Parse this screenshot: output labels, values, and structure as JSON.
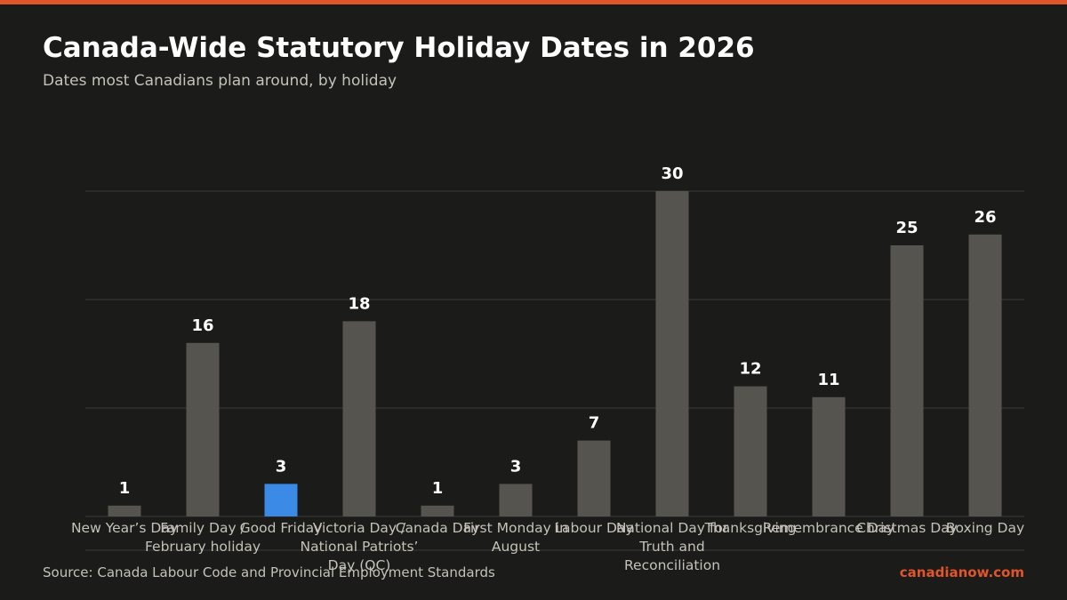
{
  "header": {
    "title": "Canada-Wide Statutory Holiday Dates in 2026",
    "subtitle": "Dates most Canadians plan around, by holiday"
  },
  "footer": {
    "source": "Source: Canada Labour Code and Provincial Employment Standards",
    "brand": "canadianow.com"
  },
  "colors": {
    "accent": "#e0552a",
    "bar": "#55544e",
    "highlight": "#3a8ae6",
    "grid": "#3a3936",
    "value_label": "#ffffff",
    "tick_label": "#c4c2b8"
  },
  "chart_data": {
    "type": "bar",
    "categories": [
      "New Year’s Day",
      "Family Day / February holiday",
      "Good Friday",
      "Victoria Day / National Patriots’ Day (QC)",
      "Canada Day",
      "First Monday in August",
      "Labour Day",
      "National Day for Truth and Reconciliation",
      "Thanksgiving",
      "Remembrance Day",
      "Christmas Day",
      "Boxing Day"
    ],
    "values": [
      1,
      16,
      3,
      18,
      1,
      3,
      7,
      30,
      12,
      11,
      25,
      26
    ],
    "highlight_index": 2,
    "ylim": [
      0,
      30
    ],
    "grid": true,
    "xlabel": "",
    "ylabel": ""
  }
}
